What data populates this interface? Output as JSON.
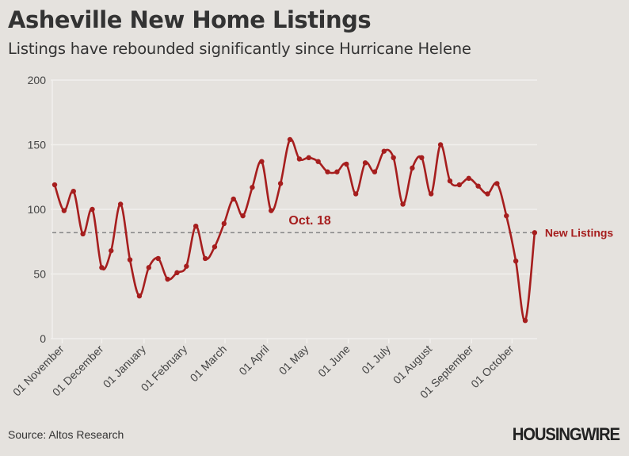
{
  "header": {
    "title": "Asheville New Home Listings",
    "subtitle": "Listings have rebounded significantly since Hurricane Helene"
  },
  "footer": {
    "source": "Source: Altos Research",
    "logo": "HOUSINGWIRE"
  },
  "colors": {
    "line": "#a61e1e",
    "reference": "#888888",
    "grid": "#f2f0ed",
    "background": "#e5e2de"
  },
  "chart_data": {
    "type": "line",
    "title": "Asheville New Home Listings",
    "subtitle": "Listings have rebounded significantly since Hurricane Helene",
    "xlabel": "",
    "ylabel": "",
    "ylim": [
      0,
      200
    ],
    "yticks": [
      0,
      50,
      100,
      150,
      200
    ],
    "grid": true,
    "x_ticks": [
      {
        "label": "01 November",
        "week": 0.8
      },
      {
        "label": "01 December",
        "week": 5.0
      },
      {
        "label": "01 January",
        "week": 9.5
      },
      {
        "label": "01 February",
        "week": 13.9
      },
      {
        "label": "01 March",
        "week": 18.1
      },
      {
        "label": "01 April",
        "week": 22.6
      },
      {
        "label": "01 May",
        "week": 26.8
      },
      {
        "label": "01 June",
        "week": 31.2
      },
      {
        "label": "01 July",
        "week": 35.5
      },
      {
        "label": "01 August",
        "week": 39.9
      },
      {
        "label": "01 September",
        "week": 44.3
      },
      {
        "label": "01 October",
        "week": 48.6
      }
    ],
    "series": [
      {
        "name": "New Listings",
        "values": [
          119,
          99,
          114,
          81,
          100,
          55,
          68,
          104,
          61,
          33,
          55,
          62,
          46,
          51,
          56,
          87,
          62,
          71,
          89,
          108,
          95,
          117,
          137,
          99,
          120,
          154,
          139,
          140,
          137,
          129,
          129,
          135,
          112,
          136,
          129,
          145,
          140,
          104,
          132,
          140,
          112,
          150,
          122,
          119,
          124,
          118,
          112,
          120,
          95,
          60,
          14,
          82
        ]
      }
    ],
    "reference_line": {
      "value": 82,
      "style": "dashed"
    },
    "annotations": [
      {
        "text": "Oct. 18",
        "week": 25.2,
        "value": 92
      },
      {
        "text": "New Listings",
        "week": 51,
        "value": 82,
        "position": "end-label"
      }
    ],
    "legend": "none"
  }
}
